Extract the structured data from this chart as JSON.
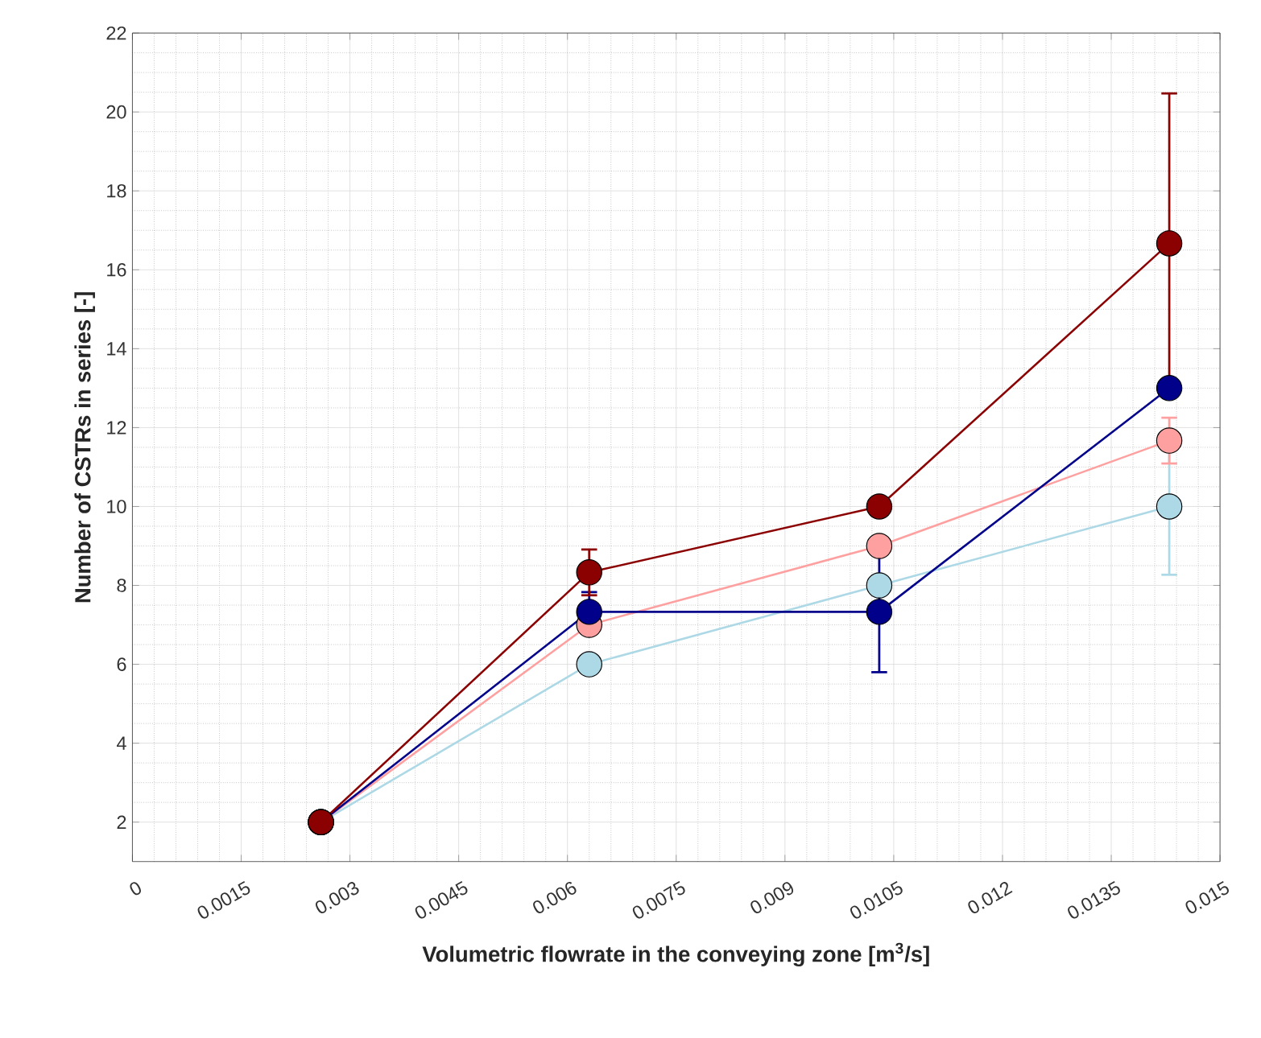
{
  "chart_data": {
    "type": "line",
    "xlabel": "Volumetric flowrate in the conveying zone [m$^{3}$/s]",
    "ylabel": "Number of CSTRs in series [-]",
    "x": [
      0.0026,
      0.0063,
      0.0103,
      0.0143
    ],
    "series": [
      {
        "color": "#8b0000",
        "values": [
          2,
          8.33,
          10,
          16.67
        ],
        "errors": [
          null,
          0.58,
          null,
          3.8
        ]
      },
      {
        "color": "#00008b",
        "values": [
          2,
          7.33,
          7.33,
          13
        ],
        "errors": [
          null,
          0.5,
          1.53,
          null
        ]
      },
      {
        "color": "#ffa0a0",
        "values": [
          2,
          7,
          9,
          11.67
        ],
        "errors": [
          null,
          null,
          null,
          0.58
        ]
      },
      {
        "color": "#add8e6",
        "values": [
          2,
          6,
          8,
          10
        ],
        "errors": [
          null,
          null,
          null,
          1.73
        ]
      }
    ],
    "xlim": [
      0,
      0.015
    ],
    "ylim": [
      1,
      22
    ],
    "xticks": [
      0,
      0.0015,
      0.003,
      0.0045,
      0.006,
      0.0075,
      0.009,
      0.0105,
      0.012,
      0.0135,
      0.015
    ],
    "yticks": [
      2,
      4,
      6,
      8,
      10,
      12,
      14,
      16,
      18,
      20,
      22
    ],
    "grid": true,
    "marker": "circle",
    "line_style": "solid"
  }
}
